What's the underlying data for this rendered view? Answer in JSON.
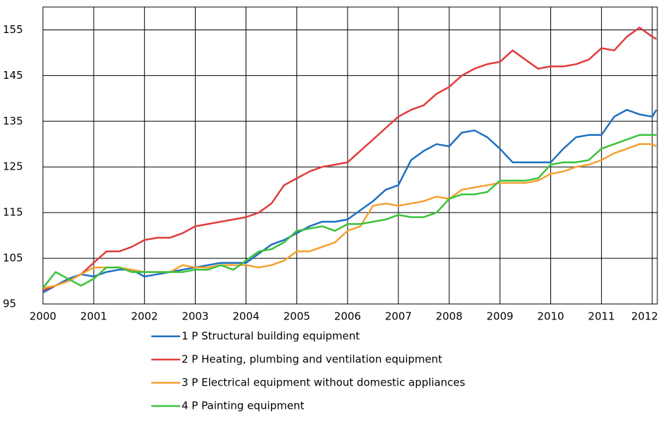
{
  "chart_data": {
    "type": "line",
    "x": [
      2000,
      2000.25,
      2000.5,
      2000.75,
      2001,
      2001.25,
      2001.5,
      2001.75,
      2002,
      2002.25,
      2002.5,
      2002.75,
      2003,
      2003.25,
      2003.5,
      2003.75,
      2004,
      2004.25,
      2004.5,
      2004.75,
      2005,
      2005.25,
      2005.5,
      2005.75,
      2006,
      2006.25,
      2006.5,
      2006.75,
      2007,
      2007.25,
      2007.5,
      2007.75,
      2008,
      2008.25,
      2008.5,
      2008.75,
      2009,
      2009.25,
      2009.5,
      2009.75,
      2010,
      2010.25,
      2010.5,
      2010.75,
      2011,
      2011.25,
      2011.5,
      2011.75,
      2012,
      2012.08
    ],
    "series": [
      {
        "name": "1 P Structural building equipment",
        "color": "#1f6fbf",
        "values": [
          97.5,
          99,
          100.5,
          101.5,
          101,
          102,
          102.5,
          102.5,
          101,
          101.5,
          102,
          102.5,
          103,
          103.5,
          104,
          104,
          104,
          106,
          108,
          109,
          110.5,
          112,
          113,
          113,
          113.5,
          115.5,
          117.5,
          120,
          121,
          126.5,
          128.5,
          130,
          129.5,
          132.5,
          133,
          131.5,
          129,
          126,
          126,
          126,
          126,
          129,
          131.5,
          132,
          132,
          136,
          137.5,
          136.5,
          136,
          137.5
        ]
      },
      {
        "name": "2 P Heating, plumbing and ventilation equipment",
        "color": "#e03c3c",
        "values": [
          98,
          99,
          100,
          101.5,
          104,
          106.5,
          106.5,
          107.5,
          109,
          109.5,
          109.5,
          110.5,
          112,
          112.5,
          113,
          113.5,
          114,
          115,
          117,
          121,
          122.5,
          124,
          125,
          125.5,
          126,
          128.5,
          131,
          133.5,
          136,
          137.5,
          138.5,
          141,
          142.5,
          145,
          146.5,
          147.5,
          148,
          150.5,
          148.5,
          146.5,
          147,
          147,
          147.5,
          148.5,
          151,
          150.5,
          153.5,
          155.5,
          153.5,
          153
        ]
      },
      {
        "name": "3 P Electrical equipment without domestic appliances",
        "color": "#f5a030",
        "values": [
          98.5,
          99,
          100,
          101.5,
          103,
          103,
          103,
          102.5,
          102,
          102,
          102,
          103.5,
          103,
          103,
          103.5,
          103.5,
          103.5,
          103,
          103.5,
          104.5,
          106.5,
          106.5,
          107.5,
          108.5,
          111,
          112,
          116.5,
          117,
          116.5,
          117,
          117.5,
          118.5,
          118,
          120,
          120.5,
          121,
          121.5,
          121.5,
          121.5,
          122,
          123.5,
          124,
          125,
          125.5,
          126.5,
          128,
          129,
          130,
          130,
          129.5
        ]
      },
      {
        "name": "4 P Painting equipment",
        "color": "#3cc23c",
        "values": [
          98.5,
          102,
          100.5,
          99,
          100.5,
          103,
          103,
          102,
          102,
          102,
          102,
          102,
          102.5,
          102.5,
          103.5,
          102.5,
          104.5,
          106.5,
          107,
          108.5,
          111,
          111.5,
          112,
          111,
          112.5,
          112.5,
          113,
          113.5,
          114.5,
          114,
          114,
          115,
          118,
          119,
          119,
          119.5,
          122,
          122,
          122,
          122.5,
          125.5,
          126,
          126,
          126.5,
          129,
          130,
          131,
          132,
          132,
          132
        ]
      }
    ],
    "xlim": [
      2000,
      2012.1
    ],
    "xticks": [
      2000,
      2001,
      2002,
      2003,
      2004,
      2005,
      2006,
      2007,
      2008,
      2009,
      2010,
      2011,
      2012
    ],
    "ylim": [
      95,
      160
    ],
    "yticks": [
      95,
      105,
      115,
      125,
      135,
      145,
      155
    ],
    "grid": true
  }
}
